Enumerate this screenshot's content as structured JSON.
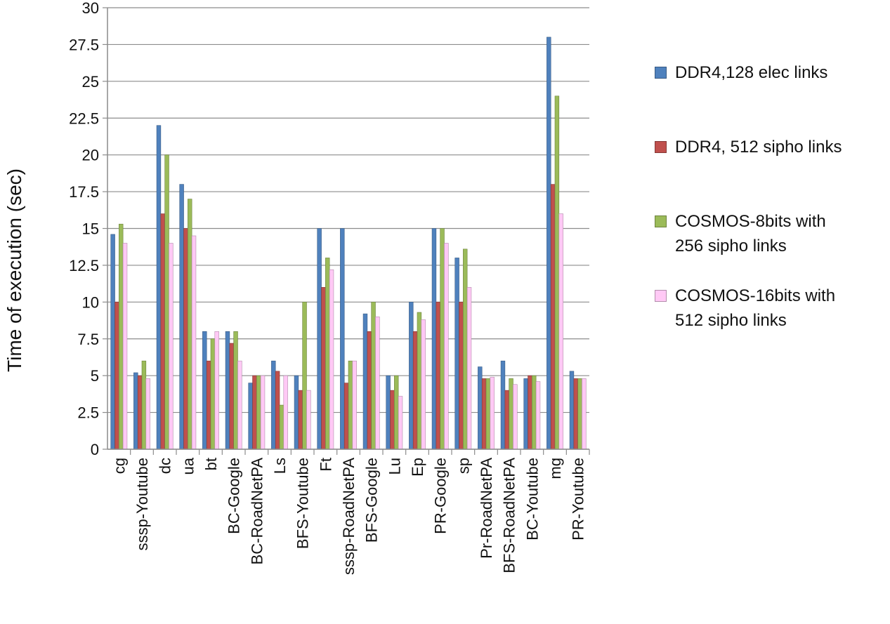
{
  "chart_data": {
    "type": "bar",
    "ylabel": "Time of execution (sec)",
    "ylim": [
      0,
      30
    ],
    "yticks": [
      0,
      2.5,
      5,
      7.5,
      10,
      12.5,
      15,
      17.5,
      20,
      22.5,
      25,
      27.5,
      30
    ],
    "ytick_labels": [
      "0",
      "2.5",
      "5",
      "7.5",
      "10",
      "12.5",
      "15",
      "17.5",
      "20",
      "22.5",
      "25",
      "27.5",
      "30"
    ],
    "grid": "horizontal",
    "legend_position": "right",
    "categories": [
      "cg",
      "sssp-Youtube",
      "dc",
      "ua",
      "bt",
      "BC-Google",
      "BC-RoadNetPA",
      "Ls",
      "BFS-Youtube",
      "Ft",
      "sssp-RoadNetPA",
      "BFS-Google",
      "Lu",
      "Ep",
      "PR-Google",
      "sp",
      "Pr-RoadNetPA",
      "BFS-RoadNetPA",
      "BC-Youtube",
      "mg",
      "PR-Youtube"
    ],
    "series": [
      {
        "name": "DDR4,128 elec links",
        "color": "#4F81BD",
        "values": [
          14.6,
          5.2,
          22.0,
          18.0,
          8.0,
          8.0,
          4.5,
          6.0,
          5.0,
          15.0,
          15.0,
          9.2,
          5.0,
          10.0,
          15.0,
          13.0,
          5.6,
          6.0,
          4.8,
          28.0,
          5.3
        ]
      },
      {
        "name": "DDR4, 512 sipho links",
        "color": "#C0504D",
        "values": [
          10.0,
          5.0,
          16.0,
          15.0,
          6.0,
          7.2,
          5.0,
          5.3,
          4.0,
          11.0,
          4.5,
          8.0,
          4.0,
          8.0,
          10.0,
          10.0,
          4.8,
          4.0,
          5.0,
          18.0,
          4.8
        ]
      },
      {
        "name": "COSMOS-8bits with\n256 sipho links",
        "color": "#9BBB59",
        "values": [
          15.3,
          6.0,
          20.0,
          17.0,
          7.5,
          8.0,
          5.0,
          3.0,
          10.0,
          13.0,
          6.0,
          10.0,
          5.0,
          9.3,
          15.0,
          13.6,
          4.8,
          4.8,
          5.0,
          24.0,
          4.8
        ]
      },
      {
        "name": "COSMOS-16bits with\n512 sipho links",
        "color": "#FFC9F5",
        "values": [
          14.0,
          4.8,
          14.0,
          14.5,
          8.0,
          6.0,
          5.0,
          5.0,
          4.0,
          12.2,
          6.0,
          9.0,
          3.6,
          8.8,
          14.0,
          11.0,
          4.9,
          4.4,
          4.6,
          16.0,
          4.8
        ]
      }
    ]
  }
}
